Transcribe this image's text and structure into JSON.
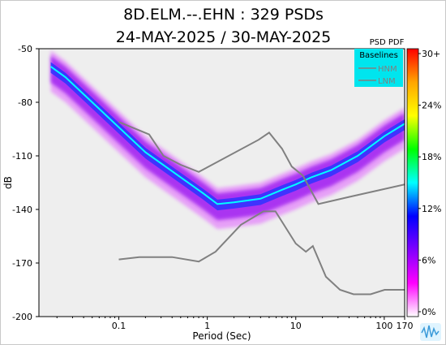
{
  "chart_data": {
    "type": "heatmap",
    "title": "8D.ELM.--.EHN : 329 PSDs",
    "subtitle": "24-MAY-2025 / 30-MAY-2025",
    "xlabel": "Period (Sec)",
    "ylabel": "dB",
    "x_scale": "log",
    "xlim": [
      0.0125,
      170
    ],
    "ylim": [
      -200,
      -50
    ],
    "x_ticks": [
      {
        "value": 0.1,
        "label": "0.1"
      },
      {
        "value": 1,
        "label": "1"
      },
      {
        "value": 10,
        "label": "10"
      },
      {
        "value": 100,
        "label": "100"
      },
      {
        "value": 170,
        "label": "170"
      }
    ],
    "y_ticks": [
      {
        "value": -50,
        "label": "-50"
      },
      {
        "value": -80,
        "label": "-80"
      },
      {
        "value": -110,
        "label": "-110"
      },
      {
        "value": -140,
        "label": "-140"
      },
      {
        "value": -170,
        "label": "-170"
      },
      {
        "value": -200,
        "label": "-200"
      }
    ],
    "colorbar": {
      "title": "PSD PDF",
      "ticks": [
        "30+",
        "24%",
        "18%",
        "12%",
        "6%",
        "0%"
      ],
      "colors": [
        "#ff0000",
        "#ffa500",
        "#ffff00",
        "#00ff00",
        "#00ffff",
        "#0000ff",
        "#8000ff",
        "#ff00ff",
        "#ffffff"
      ]
    },
    "legend": {
      "title": "Baselines",
      "placement": "top-right",
      "background": "#00e5ee",
      "entries": [
        "HNM",
        "LNM"
      ]
    },
    "series": [
      {
        "name": "HNM",
        "color": "#808080",
        "x": [
          0.1,
          0.22,
          0.32,
          0.5,
          0.8,
          3.8,
          5.0,
          7.0,
          9.0,
          12.0,
          18.0,
          40.0,
          170.0
        ],
        "y": [
          -91,
          -98,
          -110,
          -115,
          -119,
          -101,
          -97,
          -106,
          -116,
          -121,
          -137,
          -133,
          -126
        ]
      },
      {
        "name": "LNM",
        "color": "#808080",
        "x": [
          0.1,
          0.17,
          0.4,
          0.8,
          1.24,
          2.4,
          4.3,
          5.9,
          10.0,
          13.0,
          15.6,
          21.9,
          31.6,
          45.0,
          70.0,
          101.0,
          170.0
        ],
        "y": [
          -168,
          -166.7,
          -166.7,
          -169.2,
          -163.7,
          -148.6,
          -141.1,
          -141.1,
          -159.1,
          -163.7,
          -160.5,
          -177.7,
          -185.0,
          -187.5,
          -187.5,
          -185.0,
          -185.0
        ]
      }
    ],
    "pdf_ridge": {
      "x": [
        0.017,
        0.025,
        0.05,
        0.1,
        0.2,
        0.5,
        0.9,
        1.3,
        2.0,
        4.0,
        7.0,
        10.0,
        15.0,
        25.0,
        50.0,
        100.0,
        170.0
      ],
      "y": [
        -60,
        -66,
        -80,
        -94,
        -108,
        -122,
        -131,
        -137,
        -136,
        -134,
        -129,
        -126,
        -122,
        -118,
        -110,
        -99,
        -92
      ]
    },
    "grid": false,
    "background": "#eeeeee"
  }
}
